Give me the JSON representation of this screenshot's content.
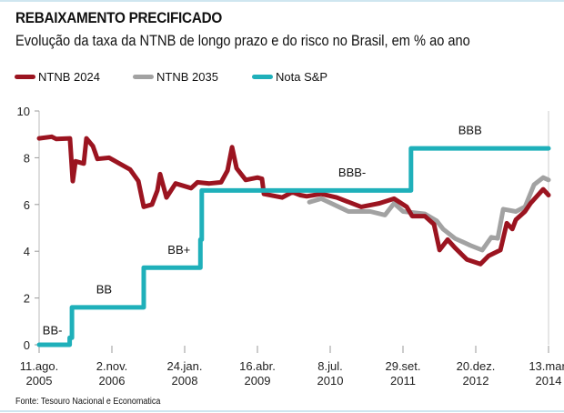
{
  "header": {
    "title": "REBAIXAMENTO PRECIFICADO",
    "subtitle": "Evolução da taxa da NTNB de longo prazo e do risco no Brasil, em % ao ano"
  },
  "source": "Fonte: Tesouro Nacional e Economatica",
  "chart_data": {
    "type": "line",
    "title": "REBAIXAMENTO PRECIFICADO",
    "subtitle": "Evolução da taxa da NTNB de longo prazo e do risco no Brasil, em % ao ano",
    "legend_position": "top-left",
    "grid": false,
    "xlim": [
      "2005-08-11",
      "2014-03-13"
    ],
    "ylim": [
      0,
      10
    ],
    "yticks": [
      0,
      2,
      4,
      6,
      8,
      10
    ],
    "xticks": [
      {
        "date": "2005-08-11",
        "label": [
          "11.ago.",
          "2005"
        ]
      },
      {
        "date": "2006-11-02",
        "label": [
          "2.nov.",
          "2006"
        ]
      },
      {
        "date": "2008-01-24",
        "label": [
          "24.jan.",
          "2008"
        ]
      },
      {
        "date": "2009-04-16",
        "label": [
          "16.abr.",
          "2009"
        ]
      },
      {
        "date": "2010-07-08",
        "label": [
          "8.jul.",
          "2010"
        ]
      },
      {
        "date": "2011-09-29",
        "label": [
          "29.set.",
          "2011"
        ]
      },
      {
        "date": "2012-12-20",
        "label": [
          "20.dez.",
          "2012"
        ]
      },
      {
        "date": "2014-03-13",
        "label": [
          "13.mar.",
          "2014"
        ]
      }
    ],
    "series": [
      {
        "name": "NTNB 2035",
        "color": "#a2a2a2",
        "points": [
          [
            "2010-03-02",
            6.1
          ],
          [
            "2010-05-14",
            6.25
          ],
          [
            "2010-10-29",
            5.7
          ],
          [
            "2011-03-12",
            5.7
          ],
          [
            "2011-06-10",
            5.55
          ],
          [
            "2011-08-05",
            6.05
          ],
          [
            "2011-09-30",
            5.7
          ],
          [
            "2012-02-11",
            5.6
          ],
          [
            "2012-04-24",
            5.3
          ],
          [
            "2012-06-02",
            4.95
          ],
          [
            "2012-08-14",
            4.55
          ],
          [
            "2012-11-17",
            4.25
          ],
          [
            "2013-01-29",
            4.05
          ],
          [
            "2013-03-26",
            4.6
          ],
          [
            "2013-05-04",
            4.55
          ],
          [
            "2013-06-07",
            5.8
          ],
          [
            "2013-08-24",
            5.7
          ],
          [
            "2013-10-19",
            5.9
          ],
          [
            "2013-12-14",
            6.85
          ],
          [
            "2014-02-08",
            7.15
          ],
          [
            "2014-03-13",
            7.05
          ]
        ]
      },
      {
        "name": "NTNB 2024",
        "color": "#9b1420",
        "points": [
          [
            "2005-08-11",
            8.83
          ],
          [
            "2005-10-28",
            8.9
          ],
          [
            "2005-11-25",
            8.8
          ],
          [
            "2006-02-17",
            8.83
          ],
          [
            "2006-03-06",
            7.0
          ],
          [
            "2006-03-23",
            7.85
          ],
          [
            "2006-05-13",
            7.75
          ],
          [
            "2006-05-29",
            8.83
          ],
          [
            "2006-07-08",
            8.5
          ],
          [
            "2006-08-05",
            7.95
          ],
          [
            "2006-10-16",
            8.0
          ],
          [
            "2007-02-22",
            7.5
          ],
          [
            "2007-04-14",
            7.0
          ],
          [
            "2007-05-17",
            5.9
          ],
          [
            "2007-07-07",
            6.0
          ],
          [
            "2007-08-09",
            6.6
          ],
          [
            "2007-08-26",
            7.3
          ],
          [
            "2007-10-04",
            6.3
          ],
          [
            "2007-11-29",
            6.9
          ],
          [
            "2008-03-04",
            6.7
          ],
          [
            "2008-04-12",
            6.95
          ],
          [
            "2008-06-24",
            6.9
          ],
          [
            "2008-09-04",
            6.95
          ],
          [
            "2008-10-14",
            7.45
          ],
          [
            "2008-11-11",
            8.45
          ],
          [
            "2008-12-09",
            7.55
          ],
          [
            "2009-02-03",
            7.05
          ],
          [
            "2009-04-16",
            7.15
          ],
          [
            "2009-05-14",
            7.1
          ],
          [
            "2009-05-26",
            6.45
          ],
          [
            "2009-09-15",
            6.3
          ],
          [
            "2009-11-10",
            6.5
          ],
          [
            "2009-11-27",
            6.5
          ],
          [
            "2010-01-05",
            6.4
          ],
          [
            "2010-02-13",
            6.35
          ],
          [
            "2010-05-14",
            6.45
          ],
          [
            "2010-08-17",
            6.3
          ],
          [
            "2011-01-15",
            5.9
          ],
          [
            "2011-05-07",
            6.05
          ],
          [
            "2011-08-05",
            6.25
          ],
          [
            "2011-10-22",
            5.9
          ],
          [
            "2011-11-25",
            5.5
          ],
          [
            "2012-02-11",
            5.5
          ],
          [
            "2012-04-07",
            5.15
          ],
          [
            "2012-05-11",
            4.05
          ],
          [
            "2012-06-30",
            4.5
          ],
          [
            "2012-08-14",
            4.15
          ],
          [
            "2012-10-26",
            3.65
          ],
          [
            "2013-01-18",
            3.45
          ],
          [
            "2013-03-09",
            3.8
          ],
          [
            "2013-05-21",
            4.05
          ],
          [
            "2013-06-29",
            5.2
          ],
          [
            "2013-08-02",
            4.95
          ],
          [
            "2013-08-24",
            5.35
          ],
          [
            "2013-10-19",
            5.7
          ],
          [
            "2013-11-22",
            6.05
          ],
          [
            "2014-02-08",
            6.65
          ],
          [
            "2014-03-13",
            6.4
          ]
        ]
      },
      {
        "name": "Nota S&P",
        "color": "#1fb0ba",
        "step": true,
        "points": [
          [
            "2005-08-11",
            0
          ],
          [
            "2006-02-15",
            0.3
          ],
          [
            "2006-03-01",
            1.6
          ],
          [
            "2007-05-17",
            3.3
          ],
          [
            "2008-04-30",
            4.5
          ],
          [
            "2008-05-08",
            6.6
          ],
          [
            "2011-11-17",
            8.4
          ],
          [
            "2014-03-13",
            8.4
          ]
        ]
      }
    ],
    "annotations": [
      {
        "text": "BB-",
        "date": "2005-11-01",
        "y": 0.45
      },
      {
        "text": "BB",
        "date": "2006-09-15",
        "y": 2.2
      },
      {
        "text": "BB+",
        "date": "2007-12-20",
        "y": 3.9
      },
      {
        "text": "BBB-",
        "date": "2010-11-20",
        "y": 7.2
      },
      {
        "text": "BBB",
        "date": "2012-11-15",
        "y": 9.0
      }
    ]
  },
  "legend": [
    {
      "label": "NTNB 2024",
      "color": "#9b1420"
    },
    {
      "label": "NTNB 2035",
      "color": "#a2a2a2"
    },
    {
      "label": "Nota S&P",
      "color": "#1fb0ba"
    }
  ]
}
